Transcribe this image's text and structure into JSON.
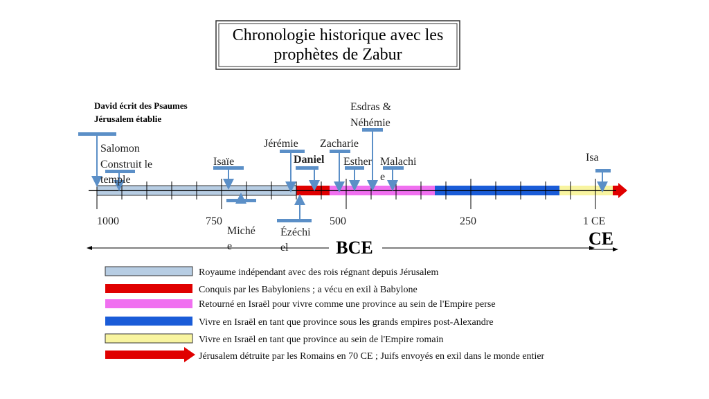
{
  "title": {
    "line1": "Chronologie historique avec les",
    "line2": "prophètes de Zabur"
  },
  "top_note": {
    "line1": "David écrit des Psaumes",
    "line2": "Jérusalem établie"
  },
  "prophets": {
    "salomon": [
      "Salomon",
      "Construit le",
      "temple"
    ],
    "isaie": "Isaïe",
    "michee": [
      "Miché",
      "e"
    ],
    "jeremie": "Jérémie",
    "ezechiel": [
      "Ézéchi",
      "el"
    ],
    "daniel": "Daniel",
    "zacharie": "Zacharie",
    "esther": "Esther",
    "esdras": [
      "Esdras &",
      "Néhémie"
    ],
    "malachie": [
      "Malachi",
      "e"
    ],
    "isa": "Isa"
  },
  "axis": {
    "ticks": [
      "1000",
      "750",
      "500",
      "250",
      "1 CE"
    ],
    "bce": "BCE",
    "ce": "CE"
  },
  "legend": [
    "Royaume indépendant avec des rois régnant depuis Jérusalem",
    "Conquis par les Babyloniens ; a vécu en exil à Babylone",
    "Retourné en Israël pour vivre comme une province au sein de l'Empire perse",
    "Vivre en Israël en tant que province sous les grands empires post-Alexandre",
    "Vivre en Israël en tant que province au sein de l'Empire romain",
    "Jérusalem détruite par les Romains en 70 CE ; Juifs envoyés en exil dans le monde entier"
  ]
}
